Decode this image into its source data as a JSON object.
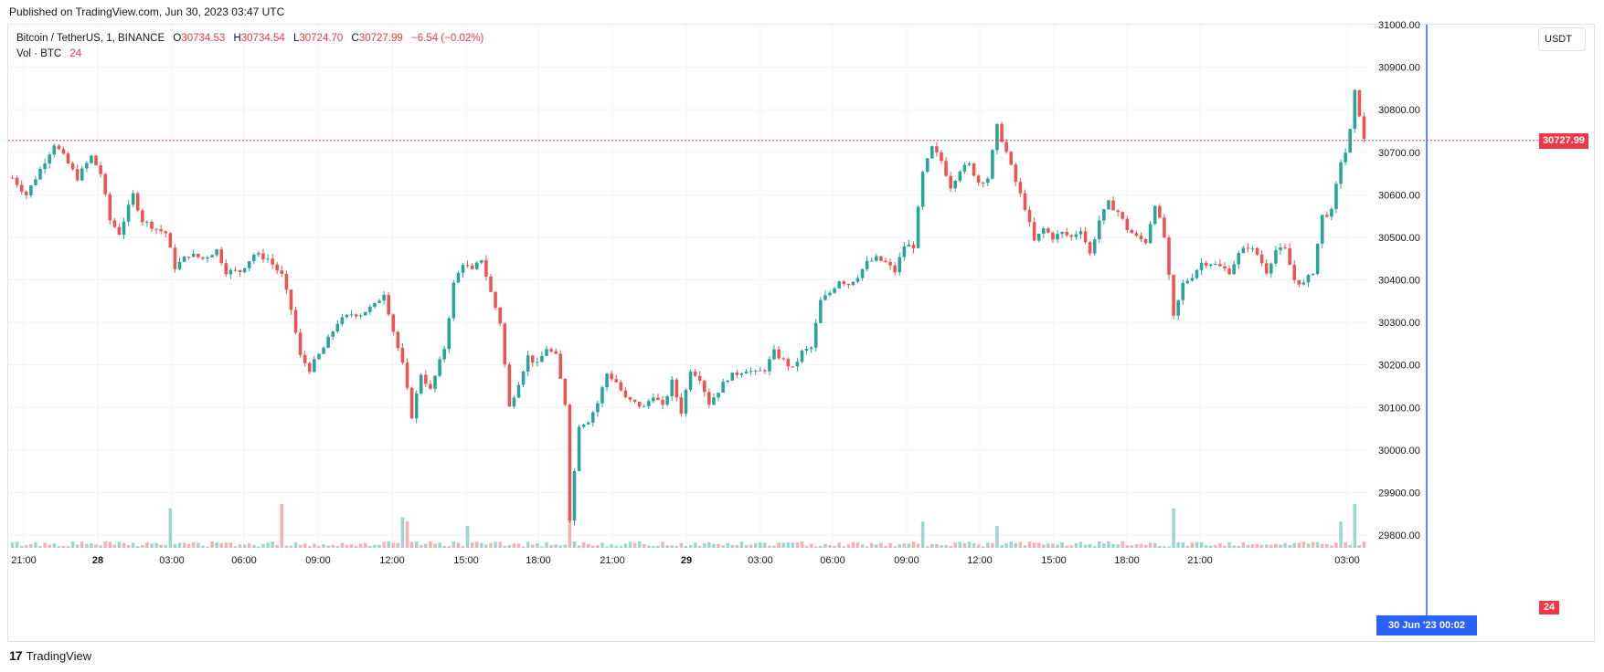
{
  "header": {
    "published": "Published on TradingView.com, Jun 30, 2023 03:47 UTC"
  },
  "legend": {
    "symbol": "Bitcoin / TetherUS, 1, BINANCE",
    "o_label": "O",
    "o_value": "30734.53",
    "h_label": "H",
    "h_value": "30734.54",
    "l_label": "L",
    "l_value": "30724.70",
    "c_label": "C",
    "c_value": "30727.99",
    "change": "−6.54 (−0.02%)",
    "vol_label": "Vol · BTC",
    "vol_value": "24"
  },
  "axis": {
    "unit": "USDT",
    "last_price": "30727.99",
    "last_volume": "24",
    "cursor_label": "30 Jun '23   00:02"
  },
  "brand": {
    "name": "TradingView"
  },
  "colors": {
    "up": "#26a69a",
    "down": "#ef5350",
    "cursor": "#2962ff",
    "last": "#f23645",
    "grid": "#f0f3fa"
  },
  "chart_data": {
    "type": "candlestick",
    "title": "Bitcoin / TetherUS, 1, BINANCE",
    "ylabel": "USDT",
    "ylim": [
      29770,
      31000
    ],
    "y_ticks": [
      "31000.00",
      "30900.00",
      "30800.00",
      "30700.00",
      "30600.00",
      "30500.00",
      "30400.00",
      "30300.00",
      "30200.00",
      "30100.00",
      "30000.00",
      "29900.00",
      "29800.00"
    ],
    "x_ticks": [
      "21:00",
      "28",
      "03:00",
      "06:00",
      "09:00",
      "12:00",
      "15:00",
      "18:00",
      "21:00",
      "29",
      "03:00",
      "06:00",
      "09:00",
      "12:00",
      "15:00",
      "18:00",
      "21:00",
      "03:00"
    ],
    "last_price": 30727.99,
    "cursor_time": "30 Jun '23 00:02",
    "price_path": [
      [
        0,
        30640
      ],
      [
        3,
        30600
      ],
      [
        6,
        30660
      ],
      [
        9,
        30720
      ],
      [
        11,
        30690
      ],
      [
        14,
        30640
      ],
      [
        17,
        30690
      ],
      [
        19,
        30650
      ],
      [
        21,
        30540
      ],
      [
        23,
        30510
      ],
      [
        26,
        30600
      ],
      [
        28,
        30540
      ],
      [
        31,
        30520
      ],
      [
        33,
        30510
      ],
      [
        35,
        30430
      ],
      [
        38,
        30460
      ],
      [
        41,
        30450
      ],
      [
        44,
        30470
      ],
      [
        46,
        30420
      ],
      [
        49,
        30420
      ],
      [
        52,
        30460
      ],
      [
        55,
        30450
      ],
      [
        58,
        30410
      ],
      [
        60,
        30330
      ],
      [
        62,
        30220
      ],
      [
        64,
        30190
      ],
      [
        67,
        30240
      ],
      [
        70,
        30300
      ],
      [
        73,
        30320
      ],
      [
        75,
        30320
      ],
      [
        78,
        30340
      ],
      [
        80,
        30370
      ],
      [
        82,
        30280
      ],
      [
        84,
        30200
      ],
      [
        86,
        30080
      ],
      [
        88,
        30180
      ],
      [
        90,
        30140
      ],
      [
        93,
        30240
      ],
      [
        95,
        30390
      ],
      [
        97,
        30440
      ],
      [
        99,
        30420
      ],
      [
        101,
        30450
      ],
      [
        103,
        30370
      ],
      [
        105,
        30300
      ],
      [
        107,
        30100
      ],
      [
        109,
        30160
      ],
      [
        111,
        30220
      ],
      [
        113,
        30200
      ],
      [
        115,
        30240
      ],
      [
        117,
        30220
      ],
      [
        119,
        30110
      ],
      [
        120,
        29840
      ],
      [
        122,
        30060
      ],
      [
        124,
        30070
      ],
      [
        126,
        30110
      ],
      [
        128,
        30180
      ],
      [
        130,
        30160
      ],
      [
        132,
        30120
      ],
      [
        134,
        30110
      ],
      [
        136,
        30100
      ],
      [
        138,
        30130
      ],
      [
        140,
        30100
      ],
      [
        142,
        30160
      ],
      [
        144,
        30090
      ],
      [
        146,
        30190
      ],
      [
        148,
        30170
      ],
      [
        150,
        30110
      ],
      [
        152,
        30140
      ],
      [
        154,
        30170
      ],
      [
        156,
        30180
      ],
      [
        158,
        30190
      ],
      [
        160,
        30180
      ],
      [
        162,
        30190
      ],
      [
        164,
        30230
      ],
      [
        166,
        30210
      ],
      [
        168,
        30190
      ],
      [
        170,
        30230
      ],
      [
        172,
        30240
      ],
      [
        174,
        30350
      ],
      [
        176,
        30370
      ],
      [
        178,
        30400
      ],
      [
        180,
        30390
      ],
      [
        182,
        30410
      ],
      [
        184,
        30440
      ],
      [
        186,
        30450
      ],
      [
        188,
        30440
      ],
      [
        190,
        30420
      ],
      [
        192,
        30480
      ],
      [
        194,
        30480
      ],
      [
        196,
        30650
      ],
      [
        198,
        30710
      ],
      [
        200,
        30680
      ],
      [
        202,
        30620
      ],
      [
        204,
        30660
      ],
      [
        206,
        30670
      ],
      [
        208,
        30630
      ],
      [
        210,
        30640
      ],
      [
        212,
        30760
      ],
      [
        214,
        30700
      ],
      [
        216,
        30630
      ],
      [
        218,
        30570
      ],
      [
        220,
        30490
      ],
      [
        222,
        30520
      ],
      [
        224,
        30500
      ],
      [
        226,
        30510
      ],
      [
        228,
        30500
      ],
      [
        230,
        30520
      ],
      [
        232,
        30460
      ],
      [
        234,
        30540
      ],
      [
        236,
        30580
      ],
      [
        238,
        30560
      ],
      [
        240,
        30520
      ],
      [
        242,
        30500
      ],
      [
        244,
        30490
      ],
      [
        246,
        30580
      ],
      [
        248,
        30500
      ],
      [
        250,
        30310
      ],
      [
        252,
        30390
      ],
      [
        254,
        30410
      ],
      [
        256,
        30440
      ],
      [
        258,
        30440
      ],
      [
        260,
        30430
      ],
      [
        262,
        30420
      ],
      [
        264,
        30460
      ],
      [
        266,
        30480
      ],
      [
        268,
        30460
      ],
      [
        270,
        30420
      ],
      [
        272,
        30470
      ],
      [
        274,
        30470
      ],
      [
        276,
        30400
      ],
      [
        278,
        30390
      ],
      [
        280,
        30420
      ],
      [
        282,
        30550
      ],
      [
        284,
        30560
      ],
      [
        286,
        30680
      ],
      [
        287,
        30700
      ],
      [
        288,
        30750
      ],
      [
        289,
        30840
      ],
      [
        290,
        30790
      ],
      [
        291,
        30728
      ]
    ],
    "volume_spikes": [
      [
        34,
        0.9
      ],
      [
        58,
        1.0
      ],
      [
        84,
        0.7
      ],
      [
        85,
        0.6
      ],
      [
        98,
        0.5
      ],
      [
        120,
        0.9
      ],
      [
        196,
        0.6
      ],
      [
        212,
        0.5
      ],
      [
        250,
        0.9
      ],
      [
        286,
        0.6
      ],
      [
        289,
        1.0
      ]
    ]
  }
}
